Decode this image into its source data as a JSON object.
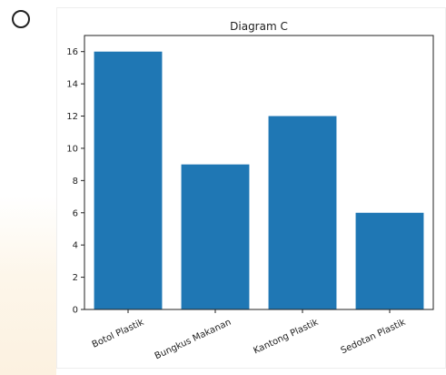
{
  "chart_data": {
    "type": "bar",
    "title": "Diagram C",
    "categories": [
      "Botol Plastik",
      "Bungkus Makanan",
      "Kantong Plastik",
      "Sedotan Plastik"
    ],
    "values": [
      16,
      9,
      12,
      6
    ],
    "xlabel": "",
    "ylabel": "",
    "ylim": [
      0,
      17
    ],
    "yticks": [
      0,
      2,
      4,
      6,
      8,
      10,
      12,
      14,
      16
    ],
    "bar_color": "#1f77b4",
    "grid": false
  }
}
